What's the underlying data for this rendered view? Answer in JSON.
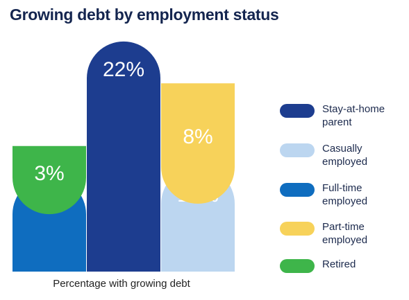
{
  "title": "Growing debt by employment status",
  "chart_data": {
    "type": "bar",
    "title": "Growing debt by employment status",
    "xlabel": "Percentage with growing debt",
    "ylabel": "",
    "ylim": [
      0,
      22
    ],
    "unit": "%",
    "stacked": true,
    "grid": false,
    "legend_position": "right",
    "series": [
      {
        "name": "Stay-at-home parent",
        "value": 22,
        "label": "22%",
        "color": "#1d3d8f",
        "column": 2,
        "stack_level": 0
      },
      {
        "name": "Casually employed",
        "value": 10,
        "label": "10%",
        "color": "#bcd6f0",
        "column": 3,
        "stack_level": 0
      },
      {
        "name": "Full-time employed",
        "value": 9,
        "label": "9%",
        "color": "#0f6dbf",
        "column": 1,
        "stack_level": 0
      },
      {
        "name": "Part-time employed",
        "value": 8,
        "label": "8%",
        "color": "#f7d25a",
        "column": 3,
        "stack_level": 1
      },
      {
        "name": "Retired",
        "value": 3,
        "label": "3%",
        "color": "#3eb54a",
        "column": 1,
        "stack_level": 1
      }
    ]
  },
  "legend": {
    "items": [
      {
        "label": "Stay-at-home parent",
        "color": "#1d3d8f"
      },
      {
        "label": "Casually employed",
        "color": "#bcd6f0"
      },
      {
        "label": "Full-time employed",
        "color": "#0f6dbf"
      },
      {
        "label": "Part-time employed",
        "color": "#f7d25a"
      },
      {
        "label": "Retired",
        "color": "#3eb54a"
      }
    ]
  }
}
